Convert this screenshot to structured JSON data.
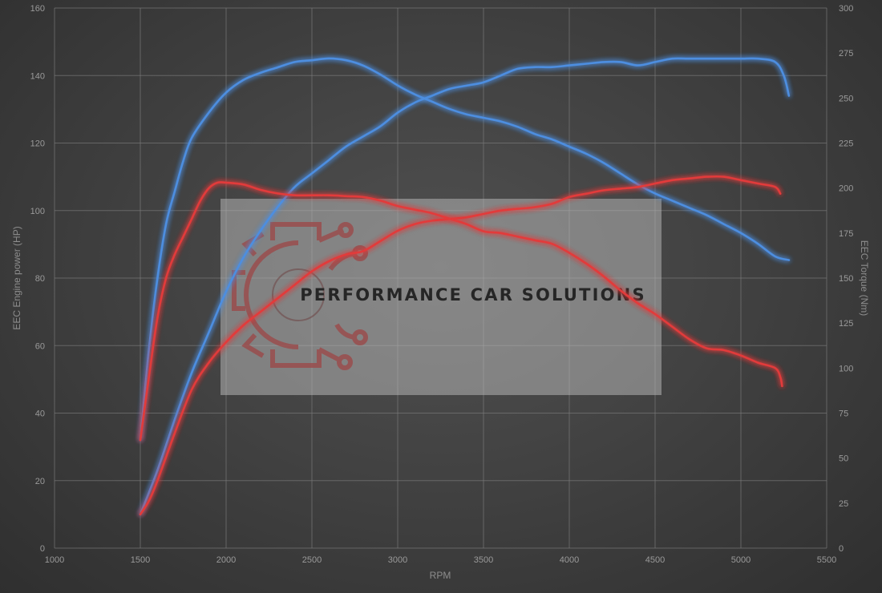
{
  "chart_data": {
    "type": "line",
    "xlabel": "RPM",
    "ylabel": "EEC Engine power (HP)",
    "y2label": "EEC Torque (Nm)",
    "xlim": [
      1000,
      5500
    ],
    "ylim": [
      0,
      160
    ],
    "y2lim": [
      0,
      300
    ],
    "x_ticks": [
      "1000",
      "1500",
      "2000",
      "2500",
      "3000",
      "3500",
      "4000",
      "4500",
      "5000",
      "5500"
    ],
    "y_ticks": [
      "0",
      "20",
      "40",
      "60",
      "80",
      "100",
      "120",
      "140",
      "160"
    ],
    "y2_ticks": [
      "0",
      "25",
      "50",
      "75",
      "100",
      "125",
      "150",
      "175",
      "200",
      "225",
      "250",
      "275",
      "300"
    ],
    "grid": true,
    "watermark": "PERFORMANCE CAR SOLUTIONS",
    "series": [
      {
        "axis": "left",
        "color": "#4d8ee0",
        "points": [
          [
            1500,
            10
          ],
          [
            1600,
            23
          ],
          [
            1700,
            38
          ],
          [
            1800,
            52
          ],
          [
            1900,
            64
          ],
          [
            2000,
            76
          ],
          [
            2100,
            86
          ],
          [
            2200,
            94
          ],
          [
            2300,
            101
          ],
          [
            2400,
            107
          ],
          [
            2500,
            111
          ],
          [
            2600,
            115
          ],
          [
            2700,
            119
          ],
          [
            2800,
            122
          ],
          [
            2900,
            125
          ],
          [
            3000,
            129
          ],
          [
            3100,
            132
          ],
          [
            3200,
            134
          ],
          [
            3300,
            136
          ],
          [
            3400,
            137
          ],
          [
            3500,
            138
          ],
          [
            3600,
            140
          ],
          [
            3700,
            142
          ],
          [
            3800,
            142.5
          ],
          [
            3900,
            142.5
          ],
          [
            4000,
            143
          ],
          [
            4100,
            143.5
          ],
          [
            4200,
            144
          ],
          [
            4300,
            144
          ],
          [
            4400,
            143
          ],
          [
            4500,
            144
          ],
          [
            4600,
            145
          ],
          [
            4700,
            145
          ],
          [
            4800,
            145
          ],
          [
            4900,
            145
          ],
          [
            5000,
            145
          ],
          [
            5100,
            145
          ],
          [
            5200,
            144
          ],
          [
            5250,
            140
          ],
          [
            5280,
            134
          ]
        ]
      },
      {
        "axis": "right",
        "color": "#4d8ee0",
        "points": [
          [
            1500,
            60
          ],
          [
            1550,
            110
          ],
          [
            1600,
            150
          ],
          [
            1650,
            180
          ],
          [
            1700,
            198
          ],
          [
            1750,
            215
          ],
          [
            1800,
            228
          ],
          [
            1900,
            242
          ],
          [
            2000,
            253
          ],
          [
            2100,
            260
          ],
          [
            2200,
            264
          ],
          [
            2300,
            267
          ],
          [
            2400,
            270
          ],
          [
            2500,
            271
          ],
          [
            2600,
            272
          ],
          [
            2700,
            271
          ],
          [
            2800,
            268
          ],
          [
            2900,
            263
          ],
          [
            3000,
            257
          ],
          [
            3100,
            252
          ],
          [
            3200,
            248
          ],
          [
            3300,
            244
          ],
          [
            3400,
            241
          ],
          [
            3500,
            239
          ],
          [
            3600,
            237
          ],
          [
            3700,
            234
          ],
          [
            3800,
            230
          ],
          [
            3900,
            227
          ],
          [
            4000,
            223
          ],
          [
            4100,
            219
          ],
          [
            4200,
            214
          ],
          [
            4300,
            208
          ],
          [
            4400,
            202
          ],
          [
            4500,
            197
          ],
          [
            4600,
            193
          ],
          [
            4700,
            189
          ],
          [
            4800,
            185
          ],
          [
            4900,
            180
          ],
          [
            5000,
            175
          ],
          [
            5100,
            169
          ],
          [
            5200,
            162
          ],
          [
            5280,
            160
          ]
        ]
      },
      {
        "axis": "left",
        "color": "#e23a3a",
        "points": [
          [
            1500,
            10
          ],
          [
            1550,
            14
          ],
          [
            1600,
            20
          ],
          [
            1700,
            34
          ],
          [
            1800,
            47
          ],
          [
            1900,
            55
          ],
          [
            2000,
            61
          ],
          [
            2100,
            66
          ],
          [
            2200,
            70
          ],
          [
            2300,
            74
          ],
          [
            2400,
            78
          ],
          [
            2500,
            82
          ],
          [
            2600,
            85
          ],
          [
            2700,
            87
          ],
          [
            2800,
            88
          ],
          [
            2900,
            91
          ],
          [
            3000,
            94
          ],
          [
            3100,
            96
          ],
          [
            3200,
            97
          ],
          [
            3300,
            97.5
          ],
          [
            3400,
            98
          ],
          [
            3500,
            99
          ],
          [
            3600,
            100
          ],
          [
            3700,
            100.5
          ],
          [
            3800,
            101
          ],
          [
            3900,
            102
          ],
          [
            4000,
            104
          ],
          [
            4100,
            105
          ],
          [
            4200,
            106
          ],
          [
            4300,
            106.5
          ],
          [
            4400,
            107
          ],
          [
            4500,
            108
          ],
          [
            4600,
            109
          ],
          [
            4700,
            109.5
          ],
          [
            4800,
            110
          ],
          [
            4900,
            110
          ],
          [
            5000,
            109
          ],
          [
            5100,
            108
          ],
          [
            5200,
            107
          ],
          [
            5230,
            105
          ]
        ]
      },
      {
        "axis": "right",
        "color": "#e23a3a",
        "points": [
          [
            1500,
            60
          ],
          [
            1550,
            95
          ],
          [
            1600,
            128
          ],
          [
            1650,
            150
          ],
          [
            1700,
            163
          ],
          [
            1750,
            173
          ],
          [
            1800,
            183
          ],
          [
            1850,
            193
          ],
          [
            1900,
            200
          ],
          [
            1950,
            203
          ],
          [
            2000,
            203
          ],
          [
            2100,
            202
          ],
          [
            2200,
            199
          ],
          [
            2300,
            197
          ],
          [
            2400,
            196
          ],
          [
            2500,
            196
          ],
          [
            2600,
            196
          ],
          [
            2700,
            195.5
          ],
          [
            2800,
            195
          ],
          [
            2900,
            193
          ],
          [
            3000,
            190
          ],
          [
            3100,
            188
          ],
          [
            3200,
            186
          ],
          [
            3300,
            183
          ],
          [
            3400,
            180
          ],
          [
            3500,
            176
          ],
          [
            3600,
            175
          ],
          [
            3700,
            173
          ],
          [
            3800,
            171
          ],
          [
            3900,
            169
          ],
          [
            4000,
            164
          ],
          [
            4100,
            158
          ],
          [
            4200,
            151
          ],
          [
            4300,
            143
          ],
          [
            4400,
            136
          ],
          [
            4500,
            130
          ],
          [
            4600,
            123
          ],
          [
            4700,
            116
          ],
          [
            4800,
            111
          ],
          [
            4900,
            110
          ],
          [
            5000,
            107
          ],
          [
            5100,
            103
          ],
          [
            5200,
            100
          ],
          [
            5230,
            95
          ],
          [
            5240,
            90
          ]
        ]
      }
    ]
  }
}
